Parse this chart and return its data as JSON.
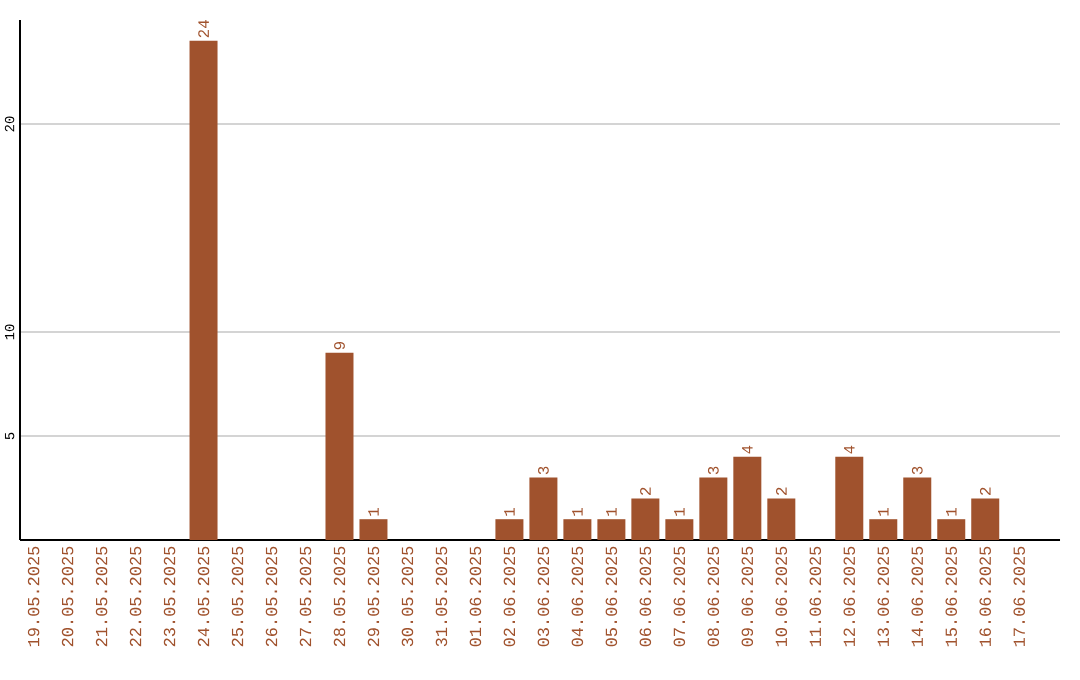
{
  "chart_data": {
    "type": "bar",
    "categories": [
      "19.05.2025",
      "20.05.2025",
      "21.05.2025",
      "22.05.2025",
      "23.05.2025",
      "24.05.2025",
      "25.05.2025",
      "26.05.2025",
      "27.05.2025",
      "28.05.2025",
      "29.05.2025",
      "30.05.2025",
      "31.05.2025",
      "01.06.2025",
      "02.06.2025",
      "03.06.2025",
      "04.06.2025",
      "05.06.2025",
      "06.06.2025",
      "07.06.2025",
      "08.06.2025",
      "09.06.2025",
      "10.06.2025",
      "11.06.2025",
      "12.06.2025",
      "13.06.2025",
      "14.06.2025",
      "15.06.2025",
      "16.06.2025",
      "17.06.2025"
    ],
    "values": [
      0,
      0,
      0,
      0,
      0,
      24,
      0,
      0,
      0,
      9,
      1,
      0,
      0,
      0,
      1,
      3,
      1,
      1,
      2,
      1,
      3,
      4,
      2,
      0,
      4,
      1,
      3,
      1,
      2,
      0
    ],
    "value_labels": [
      null,
      null,
      null,
      null,
      null,
      "24",
      null,
      null,
      null,
      "9",
      "1",
      null,
      null,
      null,
      "1",
      "3",
      "1",
      "1",
      "2",
      "1",
      "3",
      "4",
      "2",
      null,
      "4",
      "1",
      "3",
      "1",
      "2",
      null
    ],
    "color": "#a0522d",
    "ylim": [
      0,
      25
    ],
    "yticks": [
      5,
      10,
      20
    ],
    "grid": "y"
  }
}
